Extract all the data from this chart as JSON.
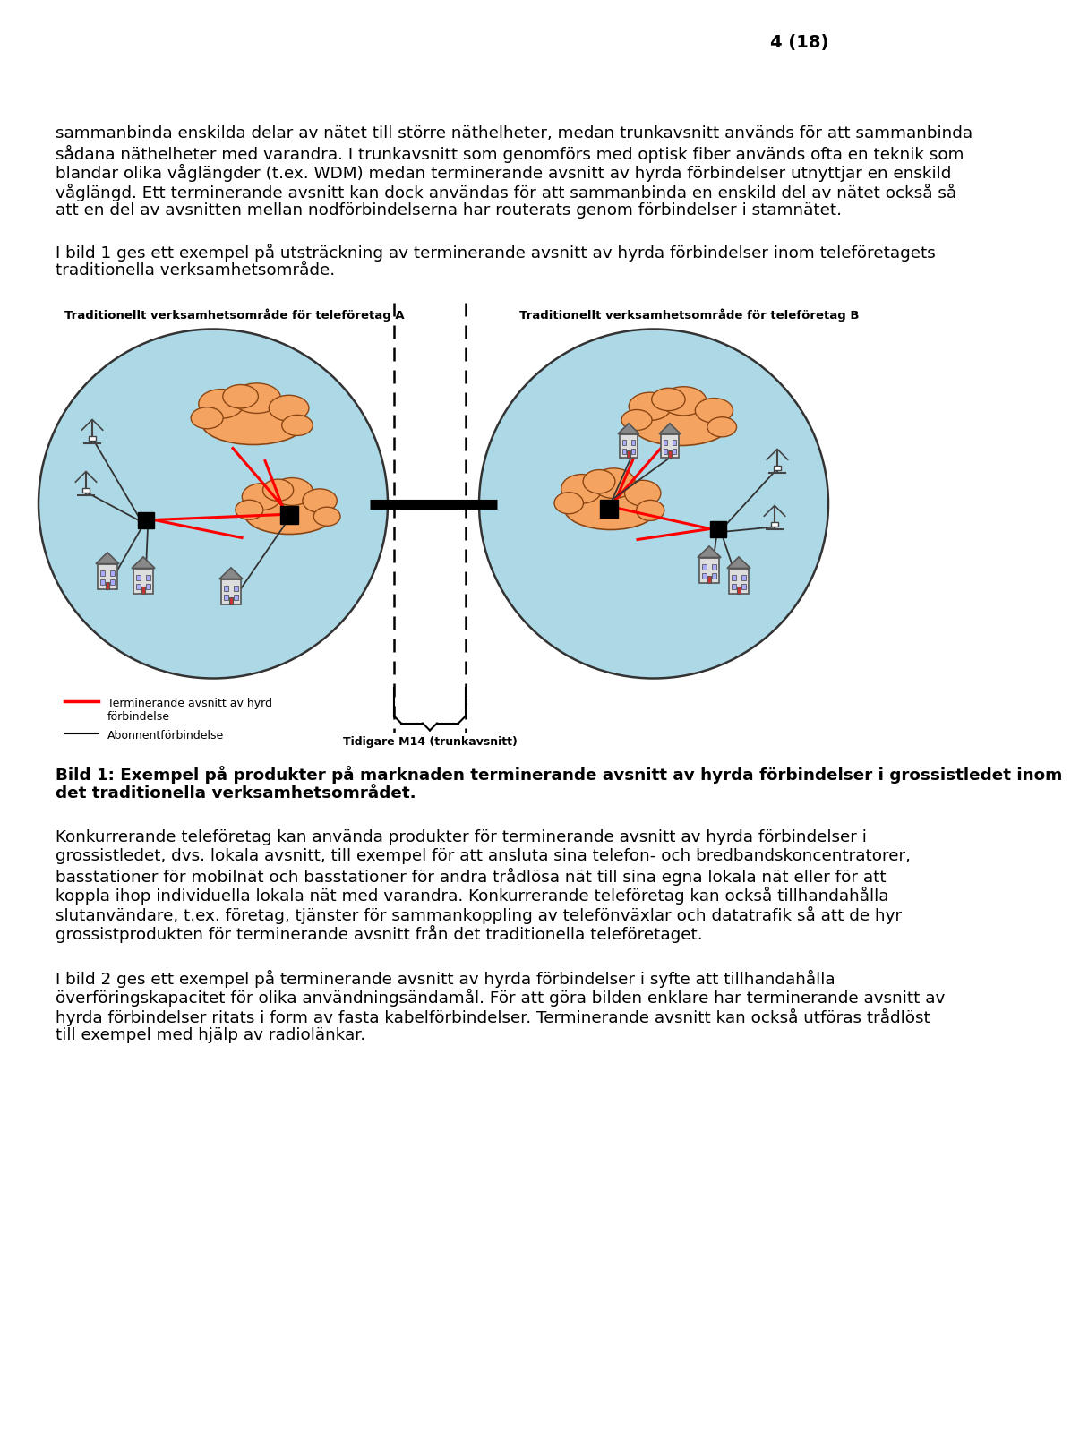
{
  "page_number": "4 (18)",
  "background_color": "#ffffff",
  "paragraphs": [
    "sammanbinda enskilda delar av nätet till större näthelheter, medan trunkavsnitt används för att sammanbinda sådana näthelheter med varandra. I trunkavsnitt som genomförs med optisk fiber används ofta en teknik som blandar olika våglängder (t.ex. WDM) medan terminerande avsnitt av hyrda förbindelser utnyttjar en enskild våglängd. Ett terminerande avsnitt kan dock användas för att sammanbinda en enskild del av nätet också så att en del av avsnitten mellan nodförbindelserna har routerats genom förbindelser i stamnätet.",
    "I bild 1 ges ett exempel på utsträckning av terminerande avsnitt av hyrda förbindelser inom teleföretagets traditionella verksamhetsområde.",
    "Konkurrerande teleföretag kan använda produkter för terminerande avsnitt av hyrda förbindelser i grossistledet, dvs. lokala avsnitt, till exempel för att ansluta sina telefon- och bredbandskoncentratorer, basstationer för mobilnät och basstationer för andra trådlösa nät till sina egna lokala nät eller för att koppla ihop individuella lokala nät med varandra. Konkurrerande teleföretag kan också tillhandahålla slutanvändare, t.ex. företag, tjänster för sammankoppling av telefönväxlar och datatrafik så att de hyr grossistprodukten för terminerande avsnitt från det traditionella teleföretaget.",
    "I bild 2 ges ett exempel på terminerande avsnitt av hyrda förbindelser i syfte att tillhandahålla överföringskapacitet för olika användningsändamål. För att göra bilden enklare har terminerande avsnitt av hyrda förbindelser ritats i form av fasta kabelförbindelser. Terminerande avsnitt kan också utföras trådlöst till exempel med hjälp av radiolänkar."
  ],
  "diagram_label_A": "Traditionellt verksamhetsområde för teleföretag A",
  "diagram_label_B": "Traditionellt verksamhetsområde för teleföretag B",
  "legend_red": "Terminerande avsnitt av hyrd\nförbindelse",
  "legend_black": "Abonnentförbindelse",
  "trunk_label": "Tidigare M14 (trunkavsnitt)",
  "figure_caption_bold": "Bild 1: Exempel på produkter på marknaden terminerande avsnitt av hyrda förbindelser i grossistledet inom det traditionella verksamhetsområdet.",
  "circle_color": "#add8e6",
  "cloud_fill": "#f4a460",
  "cloud_edge": "#8b4513"
}
